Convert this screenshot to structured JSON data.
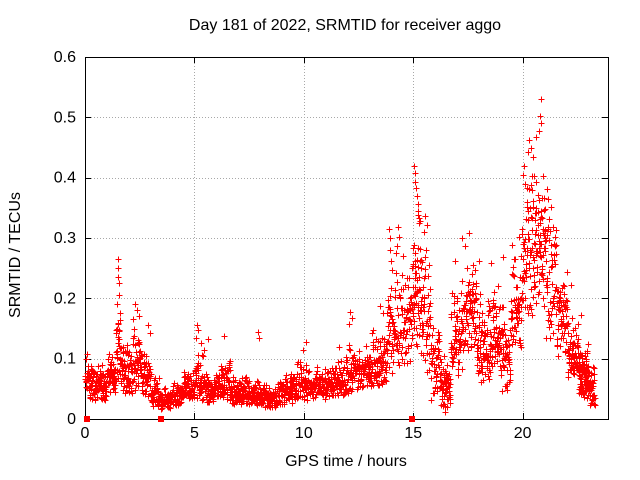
{
  "window": {
    "title": "Day 181 of 2022, SRMTID for receiver aggo"
  },
  "chart_data": {
    "type": "scatter",
    "title": "Day 181 of 2022, SRMTID for receiver aggo",
    "xlabel": "GPS time / hours",
    "ylabel": "SRMTID / TECUs",
    "xlim": [
      0,
      23.9
    ],
    "ylim": [
      0,
      0.6
    ],
    "xticks": [
      0,
      5,
      10,
      15,
      20
    ],
    "xtick_labels": [
      "0",
      "5",
      "10",
      "15",
      "20"
    ],
    "yticks": [
      0,
      0.1,
      0.2,
      0.3,
      0.4,
      0.5,
      0.6
    ],
    "ytick_labels": [
      "0",
      "0.1",
      "0.2",
      "0.3",
      "0.4",
      "0.5",
      "0.6"
    ],
    "grid": {
      "show": true,
      "style": "dotted",
      "color": "#a8a8a8"
    },
    "frame_color": "#000000",
    "background": "#ffffff",
    "marker": {
      "glyph": "+",
      "size": 7,
      "color": "#ff0000"
    },
    "series_name": "SRMTID",
    "zero_markers": {
      "shape": "square",
      "size": 6,
      "color": "#ff0000",
      "y": 0,
      "x": [
        0.1,
        3.47,
        14.93
      ]
    },
    "density_profile_format": [
      "x_start_hours",
      "x_end_hours",
      "y_min_TECUs",
      "y_max_TECUs",
      "point_count"
    ],
    "density_profile": [
      [
        0.0,
        0.2,
        0.045,
        0.105,
        15
      ],
      [
        0.2,
        0.6,
        0.03,
        0.09,
        45
      ],
      [
        0.6,
        1.0,
        0.03,
        0.095,
        50
      ],
      [
        1.0,
        1.4,
        0.04,
        0.115,
        48
      ],
      [
        1.4,
        1.75,
        0.05,
        0.17,
        42
      ],
      [
        1.75,
        2.1,
        0.04,
        0.125,
        42
      ],
      [
        2.1,
        2.55,
        0.04,
        0.16,
        50
      ],
      [
        2.55,
        3.0,
        0.035,
        0.12,
        50
      ],
      [
        3.0,
        3.45,
        0.02,
        0.075,
        45
      ],
      [
        3.45,
        3.9,
        0.015,
        0.055,
        48
      ],
      [
        3.9,
        4.5,
        0.02,
        0.07,
        60
      ],
      [
        4.5,
        5.0,
        0.03,
        0.09,
        55
      ],
      [
        5.0,
        5.45,
        0.03,
        0.115,
        48
      ],
      [
        5.45,
        6.2,
        0.025,
        0.085,
        78
      ],
      [
        6.2,
        6.65,
        0.03,
        0.1,
        46
      ],
      [
        6.65,
        7.5,
        0.025,
        0.08,
        88
      ],
      [
        7.5,
        8.3,
        0.02,
        0.068,
        80
      ],
      [
        8.3,
        8.8,
        0.015,
        0.058,
        50
      ],
      [
        8.8,
        9.6,
        0.025,
        0.08,
        80
      ],
      [
        9.6,
        10.2,
        0.03,
        0.1,
        60
      ],
      [
        10.2,
        11.2,
        0.03,
        0.092,
        100
      ],
      [
        11.2,
        11.9,
        0.035,
        0.1,
        70
      ],
      [
        11.9,
        12.45,
        0.04,
        0.13,
        55
      ],
      [
        12.45,
        13.1,
        0.05,
        0.13,
        65
      ],
      [
        13.1,
        13.8,
        0.05,
        0.16,
        70
      ],
      [
        13.8,
        14.15,
        0.07,
        0.24,
        36
      ],
      [
        14.15,
        14.65,
        0.08,
        0.3,
        45
      ],
      [
        14.65,
        14.95,
        0.09,
        0.25,
        30
      ],
      [
        14.95,
        15.4,
        0.1,
        0.4,
        60
      ],
      [
        15.4,
        15.8,
        0.07,
        0.3,
        40
      ],
      [
        15.8,
        16.25,
        0.03,
        0.17,
        45
      ],
      [
        16.25,
        16.7,
        0.015,
        0.11,
        50
      ],
      [
        16.7,
        17.3,
        0.06,
        0.24,
        62
      ],
      [
        17.3,
        17.9,
        0.1,
        0.27,
        68
      ],
      [
        17.9,
        18.5,
        0.06,
        0.22,
        68
      ],
      [
        18.5,
        18.95,
        0.08,
        0.24,
        52
      ],
      [
        18.95,
        19.45,
        0.04,
        0.2,
        55
      ],
      [
        19.45,
        19.95,
        0.1,
        0.31,
        55
      ],
      [
        19.95,
        20.55,
        0.17,
        0.44,
        72
      ],
      [
        20.55,
        21.05,
        0.18,
        0.44,
        62
      ],
      [
        21.05,
        21.55,
        0.13,
        0.35,
        50
      ],
      [
        21.55,
        22.05,
        0.1,
        0.26,
        55
      ],
      [
        22.05,
        22.55,
        0.06,
        0.17,
        65
      ],
      [
        22.55,
        22.95,
        0.035,
        0.13,
        75
      ],
      [
        22.95,
        23.3,
        0.02,
        0.1,
        45
      ]
    ],
    "peak_points": [
      [
        0.05,
        0.1
      ],
      [
        0.1,
        0.108
      ],
      [
        1.5,
        0.265
      ],
      [
        1.52,
        0.25
      ],
      [
        1.51,
        0.235
      ],
      [
        1.54,
        0.225
      ],
      [
        1.55,
        0.205
      ],
      [
        1.47,
        0.19
      ],
      [
        1.58,
        0.175
      ],
      [
        2.3,
        0.19
      ],
      [
        2.38,
        0.18
      ],
      [
        2.45,
        0.17
      ],
      [
        2.2,
        0.165
      ],
      [
        2.9,
        0.155
      ],
      [
        2.95,
        0.142
      ],
      [
        5.1,
        0.155
      ],
      [
        5.18,
        0.148
      ],
      [
        5.05,
        0.135
      ],
      [
        5.3,
        0.126
      ],
      [
        5.6,
        0.133
      ],
      [
        6.35,
        0.138
      ],
      [
        7.9,
        0.145
      ],
      [
        7.95,
        0.134
      ],
      [
        9.95,
        0.115
      ],
      [
        10.1,
        0.128
      ],
      [
        11.6,
        0.12
      ],
      [
        12.1,
        0.178
      ],
      [
        12.18,
        0.168
      ],
      [
        12.05,
        0.158
      ],
      [
        13.5,
        0.188
      ],
      [
        13.62,
        0.175
      ],
      [
        13.9,
        0.315
      ],
      [
        13.95,
        0.3
      ],
      [
        13.93,
        0.28
      ],
      [
        13.99,
        0.262
      ],
      [
        14.02,
        0.247
      ],
      [
        14.3,
        0.318
      ],
      [
        14.36,
        0.302
      ],
      [
        14.27,
        0.287
      ],
      [
        15.05,
        0.42
      ],
      [
        15.1,
        0.407
      ],
      [
        15.08,
        0.392
      ],
      [
        15.14,
        0.383
      ],
      [
        15.17,
        0.37
      ],
      [
        15.2,
        0.356
      ],
      [
        15.22,
        0.344
      ],
      [
        15.27,
        0.333
      ],
      [
        15.55,
        0.337
      ],
      [
        15.62,
        0.322
      ],
      [
        15.5,
        0.31
      ],
      [
        16.35,
        0.025
      ],
      [
        16.45,
        0.012
      ],
      [
        16.55,
        0.02
      ],
      [
        16.9,
        0.262
      ],
      [
        17.25,
        0.3
      ],
      [
        17.35,
        0.287
      ],
      [
        17.55,
        0.308
      ],
      [
        18.0,
        0.262
      ],
      [
        18.55,
        0.258
      ],
      [
        19.1,
        0.268
      ],
      [
        20.25,
        0.443
      ],
      [
        20.3,
        0.462
      ],
      [
        20.36,
        0.45
      ],
      [
        20.45,
        0.435
      ],
      [
        20.6,
        0.468
      ],
      [
        20.76,
        0.478
      ],
      [
        20.78,
        0.502
      ],
      [
        20.82,
        0.49
      ],
      [
        20.85,
        0.53
      ],
      [
        21.1,
        0.382
      ],
      [
        21.15,
        0.365
      ],
      [
        21.3,
        0.352
      ],
      [
        22.2,
        0.222
      ],
      [
        22.65,
        0.172
      ],
      [
        23.0,
        0.125
      ]
    ]
  }
}
